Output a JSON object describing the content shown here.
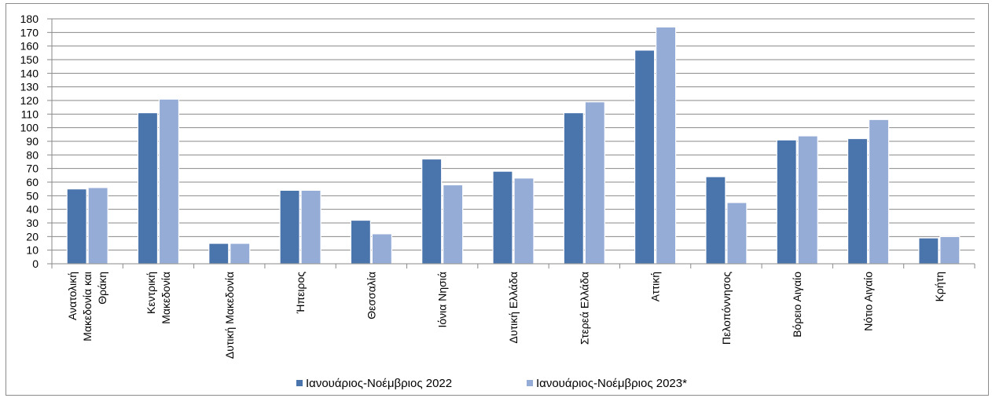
{
  "chart_data": {
    "type": "bar",
    "categories": [
      [
        "Ανατολική",
        "Μακεδονία και",
        "Θράκη"
      ],
      [
        "Κεντρική",
        "Μακεδονία"
      ],
      [
        "Δυτική Μακεδονία"
      ],
      [
        "Ήπειρος"
      ],
      [
        "Θεσσαλία"
      ],
      [
        "Ιόνια Νησιά"
      ],
      [
        "Δυτική Ελλάδα"
      ],
      [
        "Στερεά Ελλάδα"
      ],
      [
        "Αττική"
      ],
      [
        "Πελοπόννησος"
      ],
      [
        "Βόρειο Αιγαίο"
      ],
      [
        "Νότιο Αιγαίο"
      ],
      [
        "Κρήτη"
      ]
    ],
    "series": [
      {
        "name": "Ιανουάριος-Νοέμβριος 2022",
        "color": "#4a74ac",
        "values": [
          55,
          111,
          15,
          54,
          32,
          77,
          68,
          111,
          157,
          64,
          91,
          92,
          19
        ]
      },
      {
        "name": "Ιανουάριος-Νοέμβριος 2023*",
        "color": "#95acd6",
        "values": [
          56,
          121,
          15,
          54,
          22,
          58,
          63,
          119,
          174,
          45,
          94,
          106,
          20
        ]
      }
    ],
    "ylim": [
      0,
      180
    ],
    "ytick_step": 10,
    "grid": true,
    "legend_position": "bottom"
  }
}
